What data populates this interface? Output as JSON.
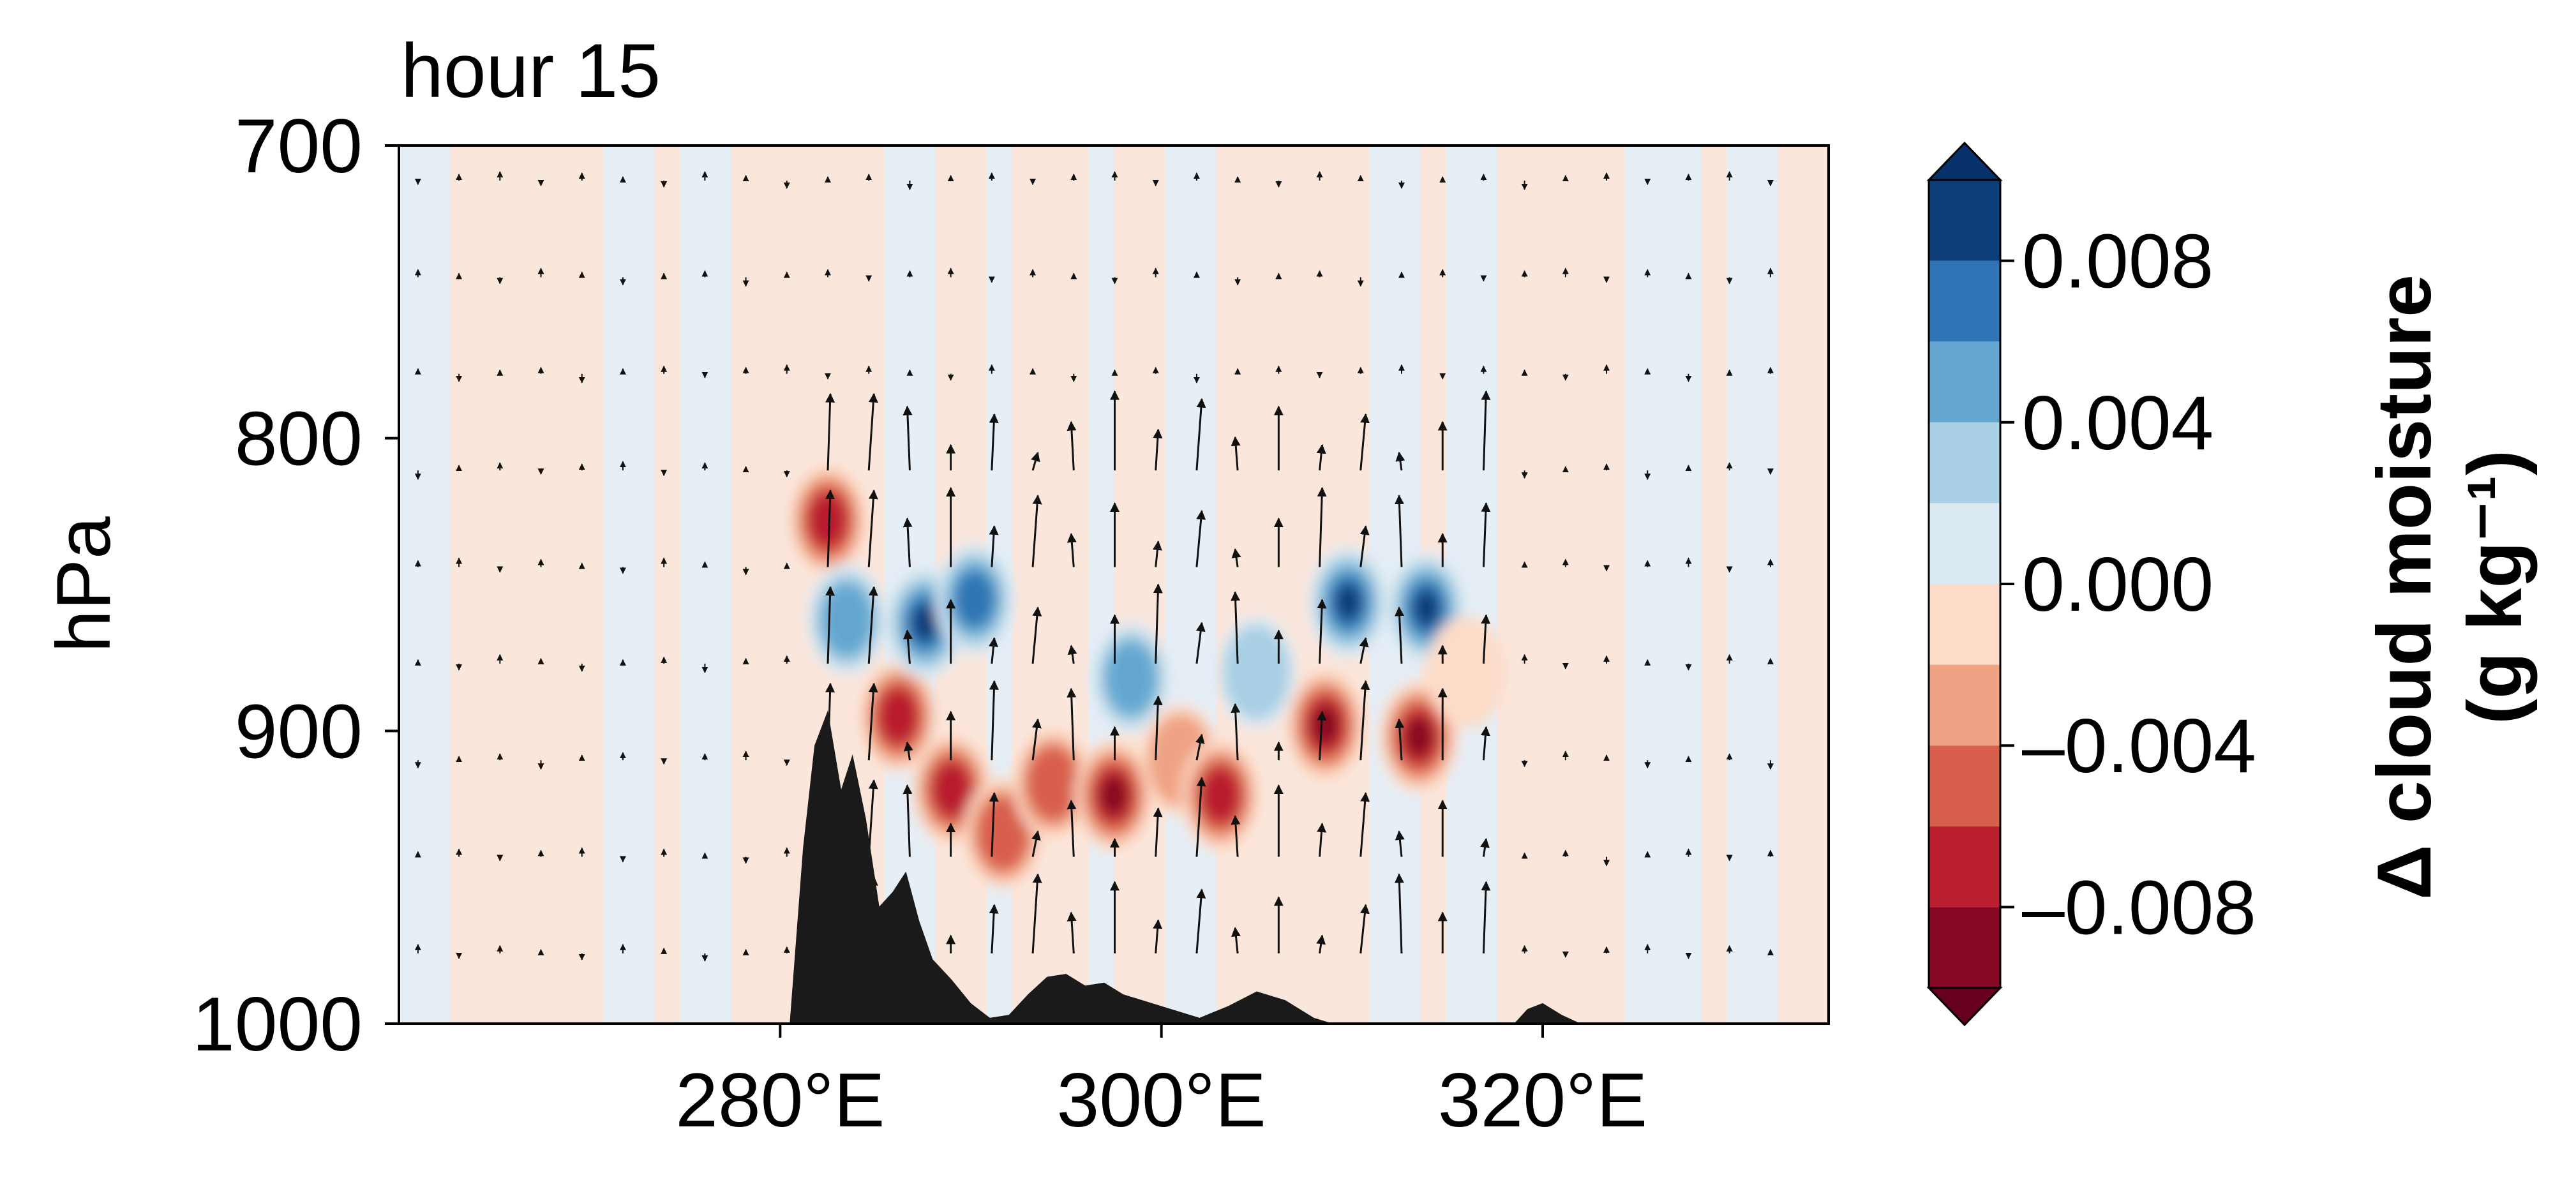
{
  "chart_data": {
    "type": "heatmap",
    "title": "hour 15",
    "xlabel": "",
    "ylabel": "hPa",
    "xlim": [
      260,
      335
    ],
    "ylim": [
      1000,
      700
    ],
    "x_ticks": [
      280,
      300,
      320
    ],
    "x_tick_labels": [
      "280°E",
      "300°E",
      "320°E"
    ],
    "y_ticks": [
      700,
      800,
      900,
      1000
    ],
    "y_tick_labels": [
      "700",
      "800",
      "900",
      "1000"
    ],
    "colorbar": {
      "label_line1": "Δ cloud moisture",
      "label_line2": "(g kg⁻¹)",
      "range": [
        -0.01,
        0.01
      ],
      "levels": [
        -0.01,
        -0.008,
        -0.006,
        -0.004,
        -0.002,
        0.0,
        0.002,
        0.004,
        0.006,
        0.008,
        0.01
      ],
      "ticks": [
        -0.008,
        -0.004,
        0.0,
        0.004,
        0.008
      ],
      "tick_labels": [
        "–0.008",
        "–0.004",
        "0.000",
        "0.004",
        "0.008"
      ],
      "colors": [
        "#850924",
        "#b91f2e",
        "#d85f4b",
        "#f0a384",
        "#fcdcc8",
        "#dbe9f2",
        "#a8cfe4",
        "#64a7d0",
        "#2f74b4",
        "#0c3e7a"
      ],
      "extend": "both"
    },
    "anomalies": [
      {
        "lon": 282.5,
        "p": 828,
        "value": -0.008
      },
      {
        "lon": 283.5,
        "p": 862,
        "value": 0.006
      },
      {
        "lon": 286.2,
        "p": 895,
        "value": -0.009
      },
      {
        "lon": 287.6,
        "p": 863,
        "value": 0.01
      },
      {
        "lon": 289.0,
        "p": 920,
        "value": -0.009
      },
      {
        "lon": 290.2,
        "p": 855,
        "value": 0.009
      },
      {
        "lon": 291.7,
        "p": 935,
        "value": -0.007
      },
      {
        "lon": 294.3,
        "p": 918,
        "value": -0.006
      },
      {
        "lon": 297.5,
        "p": 922,
        "value": -0.01
      },
      {
        "lon": 298.4,
        "p": 882,
        "value": 0.006
      },
      {
        "lon": 301.0,
        "p": 910,
        "value": -0.004
      },
      {
        "lon": 303.1,
        "p": 922,
        "value": -0.009
      },
      {
        "lon": 305.0,
        "p": 880,
        "value": 0.004
      },
      {
        "lon": 308.6,
        "p": 898,
        "value": -0.01
      },
      {
        "lon": 309.8,
        "p": 856,
        "value": 0.01
      },
      {
        "lon": 313.5,
        "p": 902,
        "value": -0.01
      },
      {
        "lon": 313.9,
        "p": 858,
        "value": 0.011
      },
      {
        "lon": 316.0,
        "p": 880,
        "value": -0.003
      }
    ],
    "terrain_profile": [
      {
        "lon": 280.5,
        "p": 1000
      },
      {
        "lon": 281.2,
        "p": 940
      },
      {
        "lon": 281.8,
        "p": 905
      },
      {
        "lon": 282.5,
        "p": 893
      },
      {
        "lon": 283.2,
        "p": 920
      },
      {
        "lon": 283.8,
        "p": 908
      },
      {
        "lon": 284.5,
        "p": 930
      },
      {
        "lon": 285.2,
        "p": 960
      },
      {
        "lon": 285.9,
        "p": 955
      },
      {
        "lon": 286.6,
        "p": 948
      },
      {
        "lon": 287.3,
        "p": 965
      },
      {
        "lon": 288.0,
        "p": 978
      },
      {
        "lon": 289.0,
        "p": 985
      },
      {
        "lon": 290.0,
        "p": 993
      },
      {
        "lon": 291.0,
        "p": 998
      },
      {
        "lon": 292.0,
        "p": 997
      },
      {
        "lon": 293.0,
        "p": 990
      },
      {
        "lon": 294.0,
        "p": 984
      },
      {
        "lon": 295.0,
        "p": 983
      },
      {
        "lon": 296.0,
        "p": 987
      },
      {
        "lon": 297.0,
        "p": 986
      },
      {
        "lon": 298.0,
        "p": 990
      },
      {
        "lon": 300.0,
        "p": 994
      },
      {
        "lon": 302.0,
        "p": 998
      },
      {
        "lon": 303.5,
        "p": 994
      },
      {
        "lon": 305.0,
        "p": 989
      },
      {
        "lon": 306.5,
        "p": 992
      },
      {
        "lon": 308.0,
        "p": 998
      },
      {
        "lon": 309.0,
        "p": 1000
      },
      {
        "lon": 318.5,
        "p": 1000
      },
      {
        "lon": 319.2,
        "p": 995
      },
      {
        "lon": 320.0,
        "p": 993
      },
      {
        "lon": 321.0,
        "p": 997
      },
      {
        "lon": 322.0,
        "p": 1000
      }
    ]
  }
}
